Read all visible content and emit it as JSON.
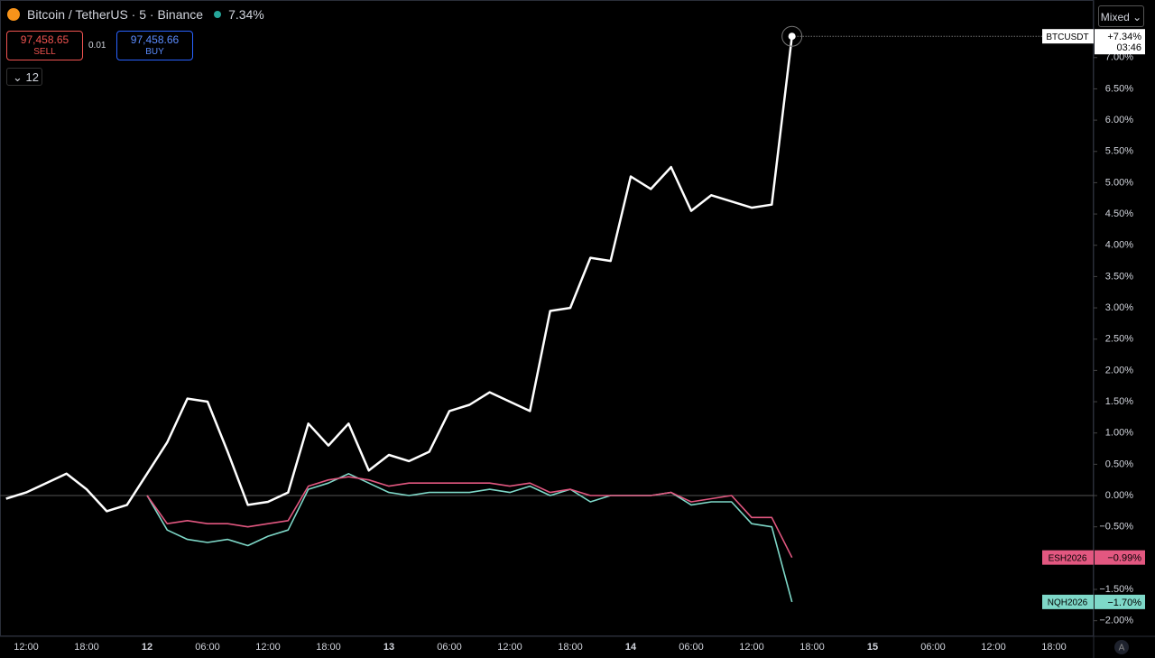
{
  "header": {
    "symbol": "Bitcoin / TetherUS · 5 · Binance",
    "change": "7.34%"
  },
  "trade": {
    "sell_price": "97,458.65",
    "sell": "SELL",
    "spread": "0.01",
    "buy_price": "97,458.66",
    "buy": "BUY",
    "quantity": "12"
  },
  "controls": {
    "scale_mode": "Mixed ⌄",
    "auto": "A",
    "countdown": "03:46"
  },
  "chart_data": {
    "type": "line",
    "categories": [
      null,
      "12:00",
      null,
      null,
      "18:00",
      null,
      null,
      "12",
      null,
      null,
      "06:00",
      null,
      null,
      "12:00",
      null,
      null,
      "18:00",
      null,
      null,
      "13",
      null,
      null,
      "06:00",
      null,
      null,
      "12:00",
      null,
      null,
      "18:00",
      null,
      null,
      "14",
      null,
      null,
      "06:00",
      null,
      null,
      "12:00",
      null,
      null,
      "18:00",
      null,
      null,
      "15",
      null,
      null,
      "06:00",
      null,
      null,
      "12:00",
      null,
      null,
      "18:00"
    ],
    "series": [
      {
        "name": "BTCUSDT",
        "color": "#ffffff",
        "end_label": "+7.34%",
        "values": [
          -0.05,
          0.05,
          0.2,
          0.35,
          0.1,
          -0.25,
          -0.15,
          0.35,
          0.85,
          1.55,
          1.5,
          0.7,
          -0.15,
          -0.1,
          0.05,
          1.15,
          0.8,
          1.15,
          0.4,
          0.65,
          0.55,
          0.7,
          1.35,
          1.45,
          1.65,
          1.5,
          1.35,
          2.95,
          3.0,
          3.8,
          3.75,
          5.1,
          4.9,
          5.25,
          4.55,
          4.8,
          4.7,
          4.6,
          4.65,
          7.34,
          null,
          null,
          null,
          null,
          null,
          null,
          null,
          null,
          null,
          null,
          null,
          null,
          null
        ]
      },
      {
        "name": "ESH2026",
        "color": "#e25780",
        "end_label": "−0.99%",
        "values": [
          null,
          null,
          null,
          null,
          null,
          null,
          null,
          0.0,
          -0.45,
          -0.4,
          -0.45,
          -0.45,
          -0.5,
          -0.45,
          -0.4,
          0.15,
          0.25,
          0.3,
          0.25,
          0.15,
          0.2,
          0.2,
          0.2,
          0.2,
          0.2,
          0.15,
          0.2,
          0.05,
          0.1,
          0.0,
          0.0,
          0.0,
          0.0,
          0.05,
          -0.1,
          -0.05,
          0.0,
          -0.35,
          -0.35,
          -0.99,
          null,
          null,
          null,
          null,
          null,
          null,
          null,
          null,
          null,
          null,
          null,
          null,
          null
        ]
      },
      {
        "name": "NQH2026",
        "color": "#7ed8c8",
        "end_label": "−1.70%",
        "values": [
          null,
          null,
          null,
          null,
          null,
          null,
          null,
          0.0,
          -0.55,
          -0.7,
          -0.75,
          -0.7,
          -0.8,
          -0.65,
          -0.55,
          0.1,
          0.2,
          0.35,
          0.2,
          0.05,
          0.0,
          0.05,
          0.05,
          0.05,
          0.1,
          0.05,
          0.15,
          0.0,
          0.1,
          -0.1,
          0.0,
          0.0,
          0.0,
          0.05,
          -0.15,
          -0.1,
          -0.1,
          -0.45,
          -0.5,
          -1.7,
          null,
          null,
          null,
          null,
          null,
          null,
          null,
          null,
          null,
          null,
          null,
          null,
          null
        ]
      }
    ],
    "ylim": [
      -2.25,
      7.92
    ],
    "yticks": [
      {
        "value": -2,
        "label": "−2.00%"
      },
      {
        "value": -1.5,
        "label": "−1.50%"
      },
      {
        "value": -0.5,
        "label": "−0.50%"
      },
      {
        "value": 0,
        "label": "0.00%"
      },
      {
        "value": 0.5,
        "label": "0.50%"
      },
      {
        "value": 1,
        "label": "1.00%"
      },
      {
        "value": 1.5,
        "label": "1.50%"
      },
      {
        "value": 2,
        "label": "2.00%"
      },
      {
        "value": 2.5,
        "label": "2.50%"
      },
      {
        "value": 3,
        "label": "3.00%"
      },
      {
        "value": 3.5,
        "label": "3.50%"
      },
      {
        "value": 4,
        "label": "4.00%"
      },
      {
        "value": 4.5,
        "label": "4.50%"
      },
      {
        "value": 5,
        "label": "5.00%"
      },
      {
        "value": 5.5,
        "label": "5.50%"
      },
      {
        "value": 6,
        "label": "6.00%"
      },
      {
        "value": 6.5,
        "label": "6.50%"
      },
      {
        "value": 7,
        "label": "7.00%"
      }
    ],
    "grid": false,
    "zero_line": true
  }
}
